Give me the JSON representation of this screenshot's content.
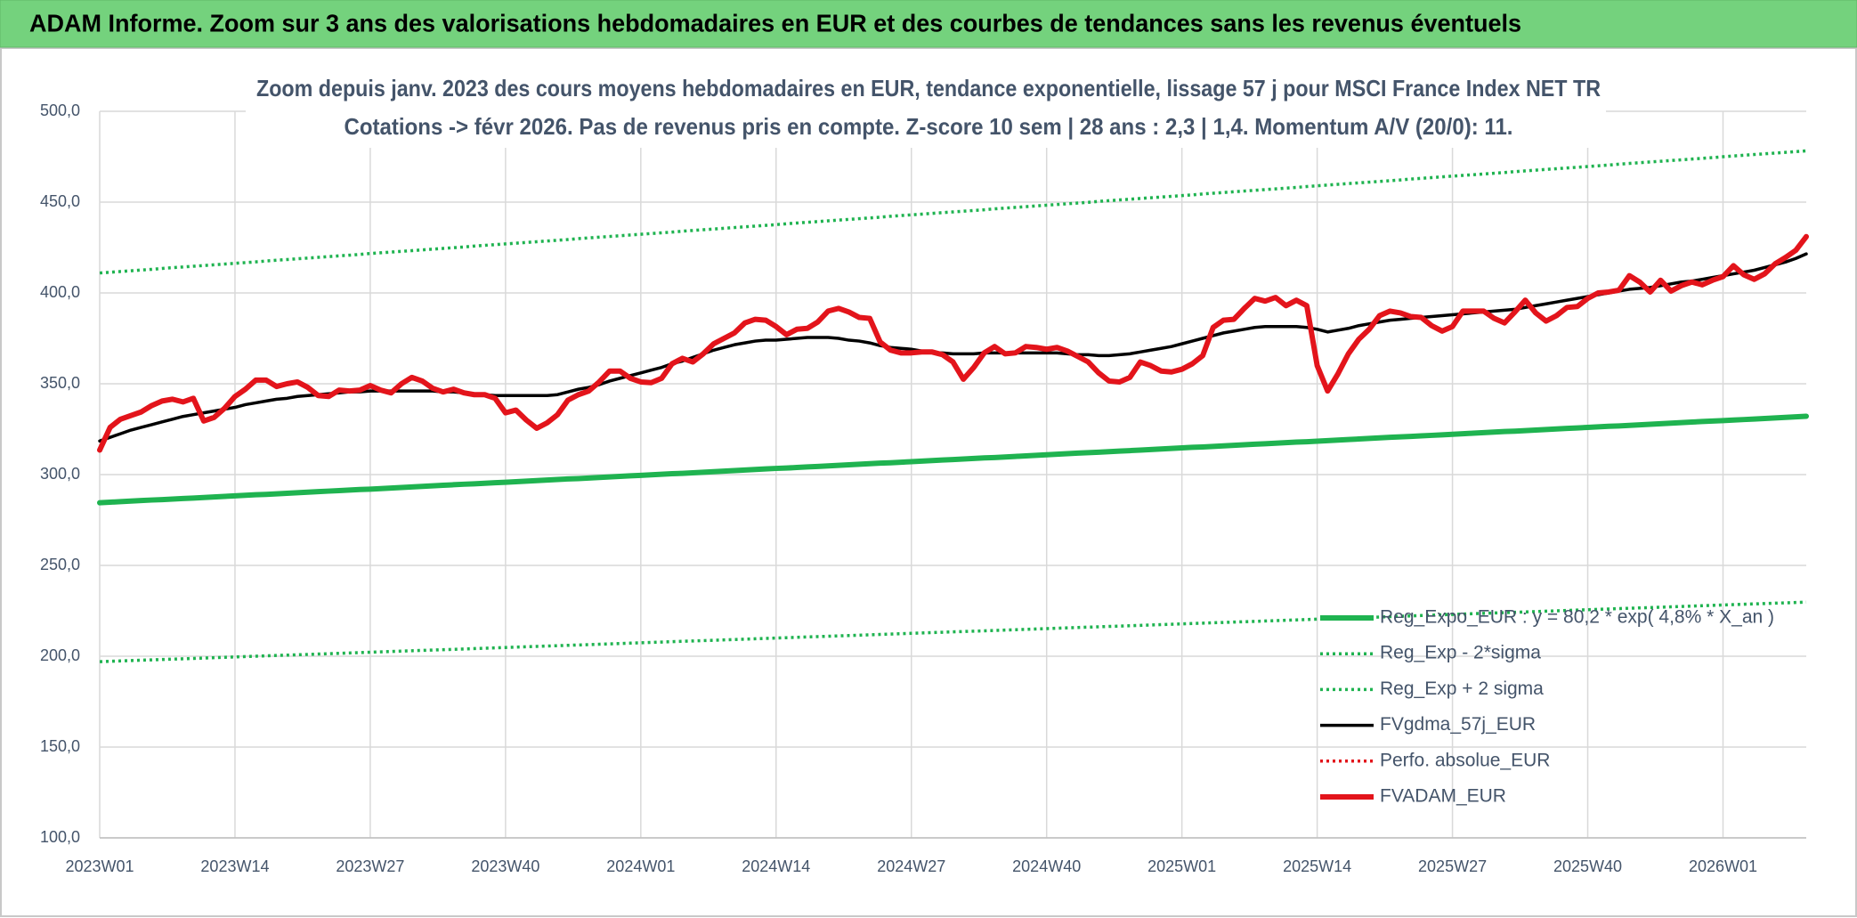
{
  "chart_data": {
    "type": "line",
    "header": "ADAM Informe. Zoom sur 3 ans des valorisations hebdomadaires en EUR et des courbes de tendances sans les revenus éventuels",
    "title": "Zoom depuis janv. 2023 des cours moyens hebdomadaires en EUR, tendance exponentielle, lissage 57 j pour MSCI France Index NET TR",
    "subtitle": "Cotations -> févr 2026. Pas de revenus pris en compte. Z-score 10 sem | 28 ans : 2,3 | 1,4. Momentum A/V (20/0): 11.",
    "categories": [
      "2023W01",
      null,
      null,
      null,
      null,
      null,
      null,
      null,
      null,
      null,
      null,
      null,
      null,
      "2023W14",
      null,
      null,
      null,
      null,
      null,
      null,
      null,
      null,
      null,
      null,
      null,
      null,
      "2023W27",
      null,
      null,
      null,
      null,
      null,
      null,
      null,
      null,
      null,
      null,
      null,
      null,
      "2023W40",
      null,
      null,
      null,
      null,
      null,
      null,
      null,
      null,
      null,
      null,
      null,
      null,
      "2024W01",
      null,
      null,
      null,
      null,
      null,
      null,
      null,
      null,
      null,
      null,
      null,
      null,
      "2024W14",
      null,
      null,
      null,
      null,
      null,
      null,
      null,
      null,
      null,
      null,
      null,
      null,
      "2024W27",
      null,
      null,
      null,
      null,
      null,
      null,
      null,
      null,
      null,
      null,
      null,
      null,
      "2024W40",
      null,
      null,
      null,
      null,
      null,
      null,
      null,
      null,
      null,
      null,
      null,
      null,
      "2025W01",
      null,
      null,
      null,
      null,
      null,
      null,
      null,
      null,
      null,
      null,
      null,
      null,
      "2025W14",
      null,
      null,
      null,
      null,
      null,
      null,
      null,
      null,
      null,
      null,
      null,
      null,
      "2025W27",
      null,
      null,
      null,
      null,
      null,
      null,
      null,
      null,
      null,
      null,
      null,
      null,
      "2025W40",
      null,
      null,
      null,
      null,
      null,
      null,
      null,
      null,
      null,
      null,
      null,
      null,
      "2026W01",
      null,
      null,
      null,
      null,
      null,
      null,
      null,
      null
    ],
    "series": [
      {
        "name": "Reg_Expo_EUR : y = 80,2 * exp( 4,8% *  X_an )",
        "color": "#1fb350",
        "line_style": "thick",
        "values": [
          284.5,
          284.8,
          285.1,
          285.4,
          285.7,
          286.0,
          286.2,
          286.5,
          286.8,
          287.1,
          287.4,
          287.7,
          288.0,
          288.3,
          288.6,
          288.9,
          289.1,
          289.4,
          289.7,
          290.0,
          290.3,
          290.6,
          290.9,
          291.2,
          291.5,
          291.8,
          292.0,
          292.3,
          292.6,
          292.9,
          293.2,
          293.5,
          293.8,
          294.1,
          294.4,
          294.7,
          294.9,
          295.2,
          295.5,
          295.8,
          296.1,
          296.4,
          296.7,
          297.0,
          297.3,
          297.6,
          297.8,
          298.1,
          298.4,
          298.7,
          299.0,
          299.3,
          299.6,
          299.9,
          300.2,
          300.5,
          300.7,
          301.0,
          301.3,
          301.6,
          301.9,
          302.2,
          302.5,
          302.8,
          303.1,
          303.4,
          303.6,
          303.9,
          304.2,
          304.5,
          304.8,
          305.1,
          305.4,
          305.7,
          306.0,
          306.3,
          306.5,
          306.8,
          307.1,
          307.4,
          307.7,
          308.0,
          308.3,
          308.6,
          308.9,
          309.2,
          309.4,
          309.7,
          310.0,
          310.3,
          310.6,
          310.9,
          311.2,
          311.5,
          311.8,
          312.1,
          312.3,
          312.6,
          312.9,
          313.2,
          313.5,
          313.8,
          314.1,
          314.4,
          314.7,
          315.0,
          315.2,
          315.5,
          315.8,
          316.1,
          316.4,
          316.7,
          317.0,
          317.3,
          317.6,
          317.9,
          318.1,
          318.4,
          318.7,
          319.0,
          319.3,
          319.6,
          319.9,
          320.2,
          320.5,
          320.8,
          321.0,
          321.3,
          321.6,
          321.9,
          322.2,
          322.5,
          322.8,
          323.1,
          323.4,
          323.7,
          323.9,
          324.2,
          324.5,
          324.8,
          325.1,
          325.4,
          325.7,
          326.0,
          326.3,
          326.6,
          326.8,
          327.1,
          327.4,
          327.7,
          328.0,
          328.3,
          328.6,
          328.9,
          329.2,
          329.5,
          329.7,
          330.0,
          330.3,
          330.6,
          330.9,
          331.2,
          331.5,
          331.8,
          332.1
        ]
      },
      {
        "name": "Reg_Exp - 2*sigma",
        "color": "#1fb350",
        "line_style": "dotted",
        "values": [
          197.0,
          197.2,
          197.4,
          197.6,
          197.8,
          198.0,
          198.2,
          198.4,
          198.6,
          198.8,
          199.0,
          199.2,
          199.4,
          199.6,
          199.8,
          200.0,
          200.2,
          200.4,
          200.6,
          200.8,
          201.0,
          201.2,
          201.4,
          201.6,
          201.8,
          202.0,
          202.2,
          202.4,
          202.6,
          202.8,
          203.0,
          203.2,
          203.4,
          203.6,
          203.8,
          204.0,
          204.2,
          204.4,
          204.6,
          204.8,
          205.0,
          205.2,
          205.4,
          205.6,
          205.8,
          206.0,
          206.2,
          206.4,
          206.6,
          206.8,
          207.0,
          207.2,
          207.4,
          207.6,
          207.8,
          208.0,
          208.2,
          208.4,
          208.6,
          208.8,
          209.0,
          209.2,
          209.4,
          209.6,
          209.8,
          210.0,
          210.2,
          210.4,
          210.6,
          210.8,
          211.0,
          211.2,
          211.4,
          211.6,
          211.8,
          212.0,
          212.2,
          212.4,
          212.6,
          212.8,
          213.0,
          213.2,
          213.4,
          213.6,
          213.8,
          214.0,
          214.2,
          214.4,
          214.6,
          214.8,
          215.0,
          215.2,
          215.4,
          215.6,
          215.8,
          216.0,
          216.2,
          216.4,
          216.6,
          216.8,
          217.0,
          217.2,
          217.4,
          217.6,
          217.8,
          218.0,
          218.2,
          218.4,
          218.6,
          218.8,
          219.0,
          219.2,
          219.4,
          219.6,
          219.8,
          220.0,
          220.2,
          220.4,
          220.6,
          220.8,
          221.0,
          221.2,
          221.4,
          221.6,
          221.8,
          222.0,
          222.2,
          222.4,
          222.6,
          222.8,
          223.0,
          223.2,
          223.4,
          223.6,
          223.8,
          224.0,
          224.2,
          224.4,
          224.6,
          224.8,
          225.0,
          225.2,
          225.4,
          225.6,
          225.8,
          226.0,
          226.2,
          226.4,
          226.6,
          226.8,
          227.0,
          227.2,
          227.4,
          227.6,
          227.8,
          228.0,
          228.2,
          228.4,
          228.6,
          228.8,
          229.0,
          229.2,
          229.4,
          229.6,
          229.8
        ]
      },
      {
        "name": "Reg_Exp + 2 sigma",
        "color": "#1fb350",
        "line_style": "dotted",
        "values": [
          411.0,
          411.4,
          411.8,
          412.2,
          412.6,
          413.0,
          413.5,
          413.9,
          414.3,
          414.7,
          415.1,
          415.5,
          415.9,
          416.3,
          416.7,
          417.1,
          417.6,
          418.0,
          418.4,
          418.8,
          419.2,
          419.6,
          420.0,
          420.4,
          420.8,
          421.2,
          421.7,
          422.1,
          422.5,
          422.9,
          423.3,
          423.7,
          424.1,
          424.5,
          424.9,
          425.3,
          425.8,
          426.2,
          426.6,
          427.0,
          427.4,
          427.8,
          428.2,
          428.6,
          429.0,
          429.4,
          429.9,
          430.3,
          430.7,
          431.1,
          431.5,
          431.9,
          432.3,
          432.7,
          433.1,
          433.5,
          434.0,
          434.4,
          434.8,
          435.2,
          435.6,
          436.0,
          436.4,
          436.8,
          437.2,
          437.6,
          438.1,
          438.5,
          438.9,
          439.3,
          439.7,
          440.1,
          440.5,
          440.9,
          441.3,
          441.7,
          442.2,
          442.6,
          443.0,
          443.4,
          443.8,
          444.2,
          444.6,
          445.0,
          445.4,
          445.8,
          446.3,
          446.7,
          447.1,
          447.5,
          447.9,
          448.3,
          448.7,
          449.1,
          449.5,
          449.9,
          450.4,
          450.8,
          451.2,
          451.6,
          452.0,
          452.4,
          452.8,
          453.2,
          453.6,
          454.0,
          454.5,
          454.9,
          455.3,
          455.7,
          456.1,
          456.5,
          456.9,
          457.3,
          457.7,
          458.1,
          458.6,
          459.0,
          459.4,
          459.8,
          460.2,
          460.6,
          461.0,
          461.4,
          461.8,
          462.2,
          462.7,
          463.1,
          463.5,
          463.9,
          464.3,
          464.7,
          465.1,
          465.5,
          465.9,
          466.3,
          466.8,
          467.2,
          467.6,
          468.0,
          468.4,
          468.8,
          469.2,
          469.6,
          470.0,
          470.4,
          470.9,
          471.3,
          471.7,
          472.1,
          472.5,
          472.9,
          473.3,
          473.7,
          474.1,
          474.5,
          475.0,
          475.4,
          475.8,
          476.2,
          476.6,
          477.0,
          477.4,
          477.8,
          478.2
        ]
      },
      {
        "name": "FVgdma_57j_EUR",
        "color": "#000000",
        "line_style": "solid",
        "values": [
          318.5,
          320.5,
          322.5,
          324.5,
          326,
          327.5,
          329,
          330.5,
          332,
          333,
          334,
          335,
          336,
          337,
          338.5,
          339.5,
          340.5,
          341.5,
          342,
          343,
          343.5,
          344,
          344.5,
          345,
          345.5,
          345.5,
          346,
          346,
          346,
          346,
          346,
          346,
          346,
          345.5,
          345.5,
          345,
          344,
          344,
          343.5,
          343.5,
          343.5,
          343.5,
          343.5,
          343.5,
          344,
          345.5,
          347,
          348,
          349.5,
          351.5,
          353,
          354.5,
          356,
          357.5,
          359,
          361,
          362.5,
          364.5,
          366.5,
          368.5,
          370,
          371.5,
          372.5,
          373.5,
          374,
          374,
          374.5,
          375,
          375.5,
          375.5,
          375.5,
          375,
          374,
          373.5,
          372.5,
          371,
          370,
          369.5,
          369,
          368,
          367,
          367,
          366.5,
          366.5,
          366.5,
          367,
          367,
          367,
          367,
          367,
          367,
          367,
          367,
          366.5,
          366,
          366,
          365.5,
          365.5,
          366,
          366.5,
          367.5,
          368.5,
          369.5,
          370.5,
          372,
          373.5,
          375,
          376.5,
          378,
          379,
          380,
          381,
          381.5,
          381.5,
          381.5,
          381.5,
          381,
          380,
          378.5,
          379.5,
          380.5,
          382,
          383,
          384,
          385,
          385.5,
          386,
          386.5,
          387,
          387.5,
          388,
          388.5,
          389,
          389.5,
          390,
          390.5,
          391,
          392,
          393,
          394,
          395,
          396,
          397,
          398,
          399,
          400,
          401,
          402,
          402.5,
          403,
          404,
          405,
          406,
          406.5,
          407.5,
          408.5,
          409.5,
          410.5,
          411.5,
          412.5,
          414,
          415.5,
          417,
          419,
          421.5
        ]
      },
      {
        "name": "Perfo. absolue_EUR",
        "color": "#e3141b",
        "line_style": "dotted"
      },
      {
        "name": "FVADAM_EUR",
        "color": "#e3141b",
        "line_style": "thick",
        "values": [
          313.5,
          326,
          330.5,
          332.5,
          334.5,
          338,
          340.5,
          341.5,
          340,
          342,
          329.5,
          331.5,
          336.5,
          343,
          347,
          352,
          352,
          348.5,
          350,
          351,
          348,
          343.5,
          343,
          346.5,
          346,
          346.5,
          349,
          346.5,
          345,
          350,
          353.5,
          351.5,
          347.5,
          345.5,
          347,
          345,
          344,
          344,
          342,
          334,
          335.5,
          330,
          325.5,
          328.5,
          333,
          341,
          344,
          346,
          351,
          357,
          357,
          353,
          351,
          350.6,
          353,
          361,
          364,
          362,
          366.5,
          372,
          375,
          378,
          383.5,
          385.5,
          385,
          381.5,
          377,
          380,
          380.5,
          384,
          390,
          391.5,
          389.5,
          386.5,
          386,
          373,
          368.5,
          367,
          367,
          367.5,
          367.5,
          366,
          362,
          352.5,
          359,
          367,
          370.5,
          366.5,
          367,
          370.5,
          370,
          369,
          370,
          368,
          365,
          362,
          356,
          351.5,
          351,
          353.5,
          362,
          360,
          357,
          356.5,
          358,
          361,
          365.5,
          381,
          385,
          385.5,
          391.5,
          397,
          395.5,
          397.5,
          393,
          396,
          393,
          360,
          346,
          355.5,
          366.5,
          374.5,
          380,
          387.5,
          390,
          389,
          387,
          386.5,
          382,
          379,
          381.5,
          390,
          390,
          390,
          386,
          383.5,
          389.5,
          396,
          389,
          384.5,
          387.5,
          392,
          392.5,
          397,
          400,
          400.5,
          401.5,
          409.5,
          406,
          400.5,
          407,
          401,
          404,
          406,
          404.5,
          407,
          409,
          415,
          410,
          407.5,
          410.5,
          416,
          419.5,
          423.5,
          431
        ]
      }
    ],
    "ylim": [
      100,
      500
    ],
    "yticks": [
      {
        "value": 100,
        "label": "100,0"
      },
      {
        "value": 150,
        "label": "150,0"
      },
      {
        "value": 200,
        "label": "200,0"
      },
      {
        "value": 250,
        "label": "250,0"
      },
      {
        "value": 300,
        "label": "300,0"
      },
      {
        "value": 350,
        "label": "350,0"
      },
      {
        "value": 400,
        "label": "400,0"
      },
      {
        "value": 450,
        "label": "450,0"
      },
      {
        "value": 500,
        "label": "500,0"
      }
    ],
    "grid": true,
    "legend": "lower right"
  }
}
